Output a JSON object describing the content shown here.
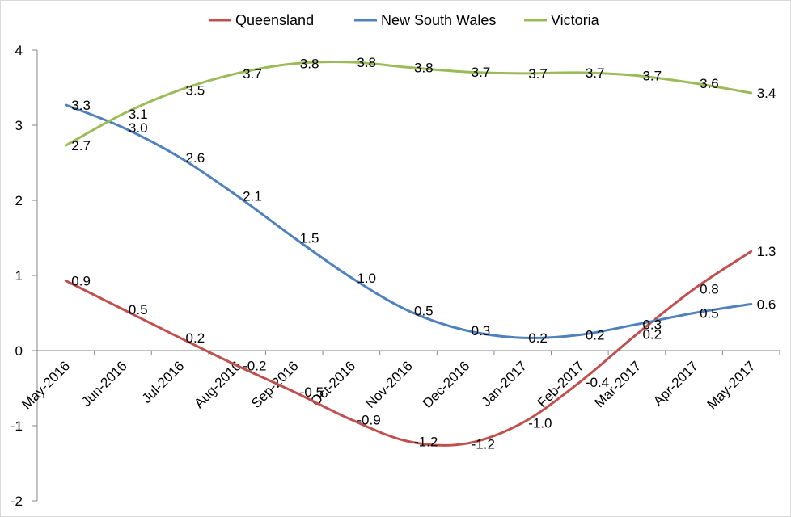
{
  "chart_data": {
    "type": "line",
    "categories": [
      "May-2016",
      "Jun-2016",
      "Jul-2016",
      "Aug-2016",
      "Sep-2016",
      "Oct-2016",
      "Nov-2016",
      "Dec-2016",
      "Jan-2017",
      "Feb-2017",
      "Mar-2017",
      "Apr-2017",
      "May-2017"
    ],
    "series": [
      {
        "name": "Queensland",
        "color": "#c0504d",
        "values": [
          0.93,
          0.55,
          0.17,
          -0.2,
          -0.55,
          -0.92,
          -1.21,
          -1.24,
          -0.96,
          -0.42,
          0.22,
          0.82,
          1.32
        ],
        "labels": [
          "0.9",
          "0.5",
          "0.2",
          "-0.2",
          "-0.5",
          "-0.9",
          "-1.2",
          "-1.2",
          "-1.0",
          "-0.4",
          "0.2",
          "0.8",
          "1.3"
        ]
      },
      {
        "name": "New South Wales",
        "color": "#4f81bd",
        "values": [
          3.27,
          2.97,
          2.57,
          2.06,
          1.5,
          0.97,
          0.53,
          0.27,
          0.17,
          0.21,
          0.35,
          0.5,
          0.62
        ],
        "labels": [
          "3.3",
          "3.0",
          "2.6",
          "2.1",
          "1.5",
          "1.0",
          "0.5",
          "0.3",
          "0.2",
          "0.2",
          "0.3",
          "0.5",
          "0.6"
        ]
      },
      {
        "name": "Victoria",
        "color": "#9bbb59",
        "values": [
          2.73,
          3.15,
          3.47,
          3.69,
          3.82,
          3.84,
          3.77,
          3.71,
          3.69,
          3.7,
          3.66,
          3.56,
          3.43
        ],
        "labels": [
          "2.7",
          "3.1",
          "3.5",
          "3.7",
          "3.8",
          "3.8",
          "3.8",
          "3.7",
          "3.7",
          "3.7",
          "3.7",
          "3.6",
          "3.4"
        ]
      }
    ],
    "y_ticks": [
      "4",
      "3",
      "2",
      "1",
      "0",
      "-1",
      "-2"
    ],
    "ylim": [
      -2,
      4
    ],
    "title": "",
    "xlabel": "",
    "ylabel": "",
    "grid": false,
    "legend_position": "top"
  }
}
